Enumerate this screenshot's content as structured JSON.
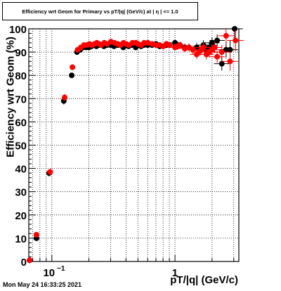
{
  "title": "Efficiency wrt Geom for Primary vs pT/|q| (GeV/c) at | η | <= 1.0",
  "footer": "Mon May 24 16:33:25 2021",
  "chart_data": {
    "type": "scatter",
    "title": "Efficiency wrt Geom for Primary vs pT/|q| (GeV/c) at | η | <= 1.0",
    "xlabel": "pT/|q| (GeV/c)",
    "ylabel": "Efficiency wrt Geom (%)",
    "xscale": "log",
    "xlim": [
      0.065,
      3.3
    ],
    "ylim": [
      0,
      100
    ],
    "y_ticks": [
      0,
      10,
      20,
      30,
      40,
      50,
      60,
      70,
      80,
      90,
      100
    ],
    "x_tick_labels": [
      {
        "value": 0.1,
        "base": "10",
        "exp": "−1"
      },
      {
        "value": 1,
        "label": "1"
      }
    ],
    "grid": true,
    "series": [
      {
        "color": "#000000",
        "x": [
          0.066,
          0.075,
          0.095,
          0.125,
          0.145,
          0.16,
          0.17,
          0.18,
          0.19,
          0.2,
          0.21,
          0.22,
          0.23,
          0.24,
          0.25,
          0.265,
          0.28,
          0.3,
          0.32,
          0.34,
          0.36,
          0.38,
          0.4,
          0.42,
          0.45,
          0.48,
          0.5,
          0.53,
          0.56,
          0.6,
          0.65,
          0.7,
          0.75,
          0.8,
          0.85,
          0.9,
          1.0,
          1.05,
          1.1,
          1.2,
          1.3,
          1.4,
          1.5,
          1.6,
          1.7,
          1.8,
          1.9,
          2.0,
          2.1,
          2.2,
          2.4,
          2.6,
          2.8,
          3.05
        ],
        "y": [
          0.5,
          10,
          38,
          69,
          80,
          90,
          91,
          92,
          92,
          92,
          92.5,
          93,
          92.5,
          93,
          93,
          92.5,
          93,
          93,
          92.5,
          93,
          93,
          92,
          93,
          92.5,
          93,
          92,
          93,
          92.5,
          93,
          93,
          93,
          93.5,
          92.5,
          92.5,
          93,
          93,
          94,
          93,
          93,
          92,
          92,
          91,
          92,
          90.5,
          93,
          91,
          92,
          94,
          92,
          95,
          85,
          91,
          91,
          100
        ],
        "yerr": [
          0.5,
          1,
          1.5,
          1.5,
          1.2,
          1,
          1,
          0.8,
          0.8,
          0.8,
          0.8,
          0.8,
          0.8,
          0.8,
          0.8,
          0.8,
          0.8,
          0.8,
          0.8,
          0.8,
          0.8,
          0.9,
          0.9,
          0.9,
          0.9,
          1,
          1,
          1,
          1,
          1,
          1.1,
          1.1,
          1.2,
          1.2,
          1.3,
          1.3,
          1.4,
          1.5,
          1.5,
          1.6,
          1.7,
          1.8,
          1.9,
          2,
          2.1,
          2.2,
          2.3,
          2.4,
          2.5,
          2.6,
          3,
          3.5,
          4,
          4.5
        ]
      },
      {
        "color": "#ff0000",
        "x": [
          0.066,
          0.075,
          0.097,
          0.127,
          0.147,
          0.162,
          0.172,
          0.182,
          0.192,
          0.202,
          0.212,
          0.222,
          0.232,
          0.242,
          0.252,
          0.267,
          0.282,
          0.302,
          0.322,
          0.342,
          0.362,
          0.382,
          0.402,
          0.422,
          0.452,
          0.482,
          0.502,
          0.532,
          0.562,
          0.602,
          0.652,
          0.702,
          0.752,
          0.802,
          0.852,
          0.902,
          1.0,
          1.05,
          1.1,
          1.2,
          1.3,
          1.4,
          1.5,
          1.6,
          1.7,
          1.8,
          1.9,
          2.0,
          2.1,
          2.2,
          2.4,
          2.6,
          2.8,
          3.1
        ],
        "y": [
          0.5,
          11.5,
          38.5,
          70.5,
          83.5,
          91,
          92,
          93,
          93,
          93.5,
          93,
          93.5,
          94,
          93.5,
          93,
          94,
          93.5,
          94.5,
          94,
          93.5,
          93,
          94,
          93.5,
          93,
          94,
          94,
          93.5,
          93,
          94,
          94,
          93.5,
          93,
          93,
          92.5,
          93.5,
          93,
          92,
          92.5,
          93,
          91.5,
          92,
          91,
          89,
          90.5,
          92,
          89,
          90,
          91,
          92,
          88,
          90,
          97,
          86,
          95
        ],
        "yerr": [
          0.5,
          1,
          1.5,
          1.5,
          1.2,
          1,
          1,
          0.8,
          0.8,
          0.8,
          0.8,
          0.8,
          0.8,
          0.8,
          0.8,
          0.8,
          0.8,
          0.8,
          0.8,
          0.8,
          0.8,
          0.9,
          0.9,
          0.9,
          0.9,
          1,
          1,
          1,
          1,
          1,
          1.1,
          1.1,
          1.2,
          1.2,
          1.3,
          1.3,
          1.4,
          1.5,
          1.5,
          1.6,
          1.7,
          1.8,
          1.9,
          2,
          2.1,
          2.2,
          2.3,
          2.4,
          2.5,
          2.6,
          3,
          3.5,
          4,
          4.5
        ]
      }
    ]
  }
}
